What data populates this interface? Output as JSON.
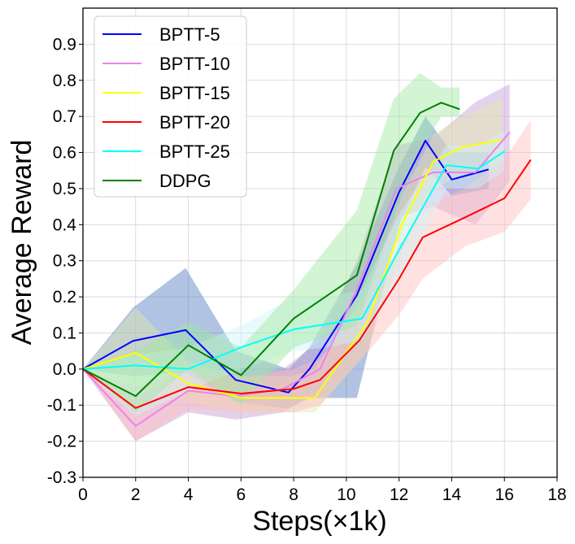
{
  "chart_data": {
    "type": "line",
    "title": "",
    "xlabel": "Steps(×1k)",
    "ylabel": "Average Reward",
    "xlim": [
      0,
      18
    ],
    "ylim": [
      -0.3,
      1.0
    ],
    "xticks": [
      "0",
      "2",
      "4",
      "6",
      "8",
      "10",
      "12",
      "14",
      "16",
      "18"
    ],
    "yticks": [
      "-0.3",
      "-0.2",
      "-0.1",
      "0.0",
      "0.1",
      "0.2",
      "0.3",
      "0.4",
      "0.5",
      "0.6",
      "0.7",
      "0.8",
      "0.9"
    ],
    "grid": true,
    "legend_position": "top-left",
    "series": [
      {
        "name": "BPTT-5",
        "color": "#0000ff",
        "band_color": "#4f7bbf",
        "x": [
          0,
          1.9,
          3.9,
          5.8,
          7.8,
          8.6,
          10.4,
          12.0,
          13.0,
          14.0,
          15.4
        ],
        "y": [
          0.0,
          0.078,
          0.108,
          -0.03,
          -0.065,
          0.0,
          0.205,
          0.49,
          0.633,
          0.525,
          0.553
        ],
        "upper": [
          0.0,
          0.17,
          0.28,
          0.05,
          0.0,
          0.06,
          0.29,
          0.56,
          0.7,
          0.6,
          0.6
        ],
        "lower": [
          0.0,
          -0.02,
          -0.01,
          -0.09,
          -0.11,
          -0.08,
          -0.08,
          0.4,
          0.56,
          0.48,
          0.5
        ]
      },
      {
        "name": "BPTT-10",
        "color": "#ee82ee",
        "band_color": "#c49bd4",
        "x": [
          0,
          2.0,
          4.0,
          5.8,
          7.6,
          9.0,
          10.4,
          11.9,
          13.3,
          14.9,
          16.2
        ],
        "y": [
          0.0,
          -0.158,
          -0.06,
          -0.075,
          -0.055,
          0.0,
          0.22,
          0.5,
          0.545,
          0.545,
          0.656
        ],
        "upper": [
          0.0,
          -0.08,
          0.0,
          -0.02,
          0.0,
          0.08,
          0.3,
          0.62,
          0.64,
          0.74,
          0.79
        ],
        "lower": [
          0.0,
          -0.2,
          -0.12,
          -0.14,
          -0.12,
          -0.05,
          0.1,
          0.42,
          0.45,
          0.4,
          0.52
        ]
      },
      {
        "name": "BPTT-15",
        "color": "#ffff00",
        "band_color": "#e4e8aa",
        "x": [
          0,
          2.0,
          4.0,
          6.0,
          7.9,
          8.8,
          10.8,
          12.1,
          13.3,
          14.4,
          15.9
        ],
        "y": [
          0.0,
          0.045,
          -0.04,
          -0.08,
          -0.08,
          -0.08,
          0.13,
          0.4,
          0.575,
          0.615,
          0.635
        ],
        "upper": [
          0.0,
          0.17,
          0.02,
          -0.02,
          -0.02,
          0.0,
          0.22,
          0.48,
          0.65,
          0.7,
          0.75
        ],
        "lower": [
          0.0,
          -0.05,
          -0.09,
          -0.12,
          -0.12,
          -0.12,
          0.05,
          0.32,
          0.5,
          0.54,
          0.55
        ]
      },
      {
        "name": "BPTT-20",
        "color": "#ff0000",
        "band_color": "#ffbdbd",
        "x": [
          0,
          2.0,
          4.0,
          6.0,
          8.0,
          9.0,
          10.5,
          12.0,
          12.9,
          14.5,
          16.0,
          17.0
        ],
        "y": [
          0.0,
          -0.108,
          -0.05,
          -0.068,
          -0.055,
          -0.03,
          0.08,
          0.25,
          0.365,
          0.42,
          0.473,
          0.58
        ],
        "upper": [
          0.0,
          -0.05,
          0.0,
          -0.02,
          0.0,
          0.03,
          0.15,
          0.34,
          0.45,
          0.5,
          0.58,
          0.69
        ],
        "lower": [
          0.0,
          -0.2,
          -0.11,
          -0.12,
          -0.12,
          -0.1,
          0.02,
          0.15,
          0.25,
          0.34,
          0.38,
          0.47
        ]
      },
      {
        "name": "BPTT-25",
        "color": "#00ffff",
        "band_color": "#cff5f9",
        "x": [
          0,
          2.0,
          4.0,
          6.0,
          8.0,
          9.3,
          10.6,
          12.0,
          13.8,
          15.0,
          16.0
        ],
        "y": [
          0.0,
          0.01,
          0.0,
          0.06,
          0.11,
          0.125,
          0.14,
          0.33,
          0.565,
          0.555,
          0.603
        ],
        "upper": [
          0.0,
          0.04,
          0.06,
          0.12,
          0.2,
          0.2,
          0.22,
          0.43,
          0.62,
          0.62,
          0.66
        ],
        "lower": [
          0.0,
          -0.13,
          -0.06,
          0.0,
          0.05,
          0.06,
          0.08,
          0.24,
          0.5,
          0.5,
          0.55
        ]
      },
      {
        "name": "DDPG",
        "color": "#008000",
        "band_color": "#9fe89f",
        "x": [
          0,
          2.0,
          4.0,
          6.0,
          8.0,
          10.4,
          11.8,
          12.8,
          13.6,
          14.3
        ],
        "y": [
          0.0,
          -0.075,
          0.066,
          -0.017,
          0.14,
          0.26,
          0.605,
          0.71,
          0.738,
          0.72
        ],
        "upper": [
          0.0,
          0.05,
          0.13,
          0.06,
          0.22,
          0.44,
          0.75,
          0.82,
          0.78,
          0.78
        ],
        "lower": [
          0.0,
          -0.12,
          0.0,
          -0.1,
          0.06,
          0.12,
          0.42,
          0.6,
          0.7,
          0.7
        ]
      }
    ]
  }
}
